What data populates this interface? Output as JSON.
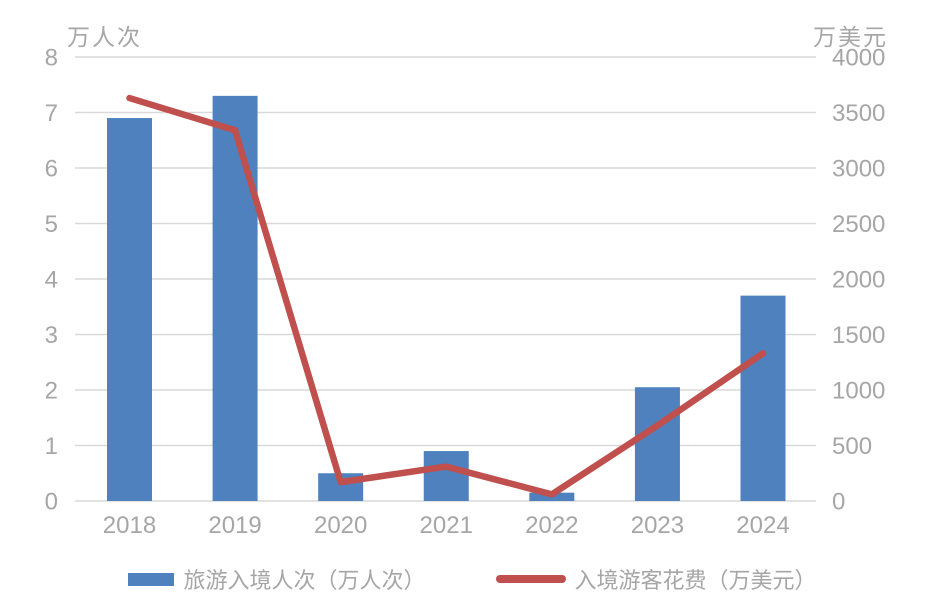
{
  "chart": {
    "left_axis_title": "万人次",
    "right_axis_title": "万美元",
    "legend": {
      "bar_label": "旅游入境人次（万人次）",
      "line_label": "入境游客花费（万美元）"
    }
  },
  "colors": {
    "bar": "#4e81bd",
    "line": "#c0504d",
    "grid": "#d9d9d9",
    "text": "#a6a6a6"
  },
  "chart_data": {
    "type": "bar",
    "subtype": "bar+line dual axis",
    "categories": [
      "2018",
      "2019",
      "2020",
      "2021",
      "2022",
      "2023",
      "2024"
    ],
    "series": [
      {
        "name": "旅游入境人次（万人次）",
        "type": "bar",
        "axis": "left",
        "color": "#4e81bd",
        "values": [
          6.9,
          7.3,
          0.5,
          0.9,
          0.15,
          2.05,
          3.7
        ]
      },
      {
        "name": "入境游客花费（万美元）",
        "type": "line",
        "axis": "right",
        "color": "#c0504d",
        "values": [
          3630,
          3340,
          170,
          310,
          60,
          680,
          1330
        ]
      }
    ],
    "left_axis": {
      "title": "万人次",
      "min": 0,
      "max": 8,
      "step": 1
    },
    "right_axis": {
      "title": "万美元",
      "min": 0,
      "max": 4000,
      "step": 500
    },
    "grid": true,
    "legend_position": "bottom"
  }
}
